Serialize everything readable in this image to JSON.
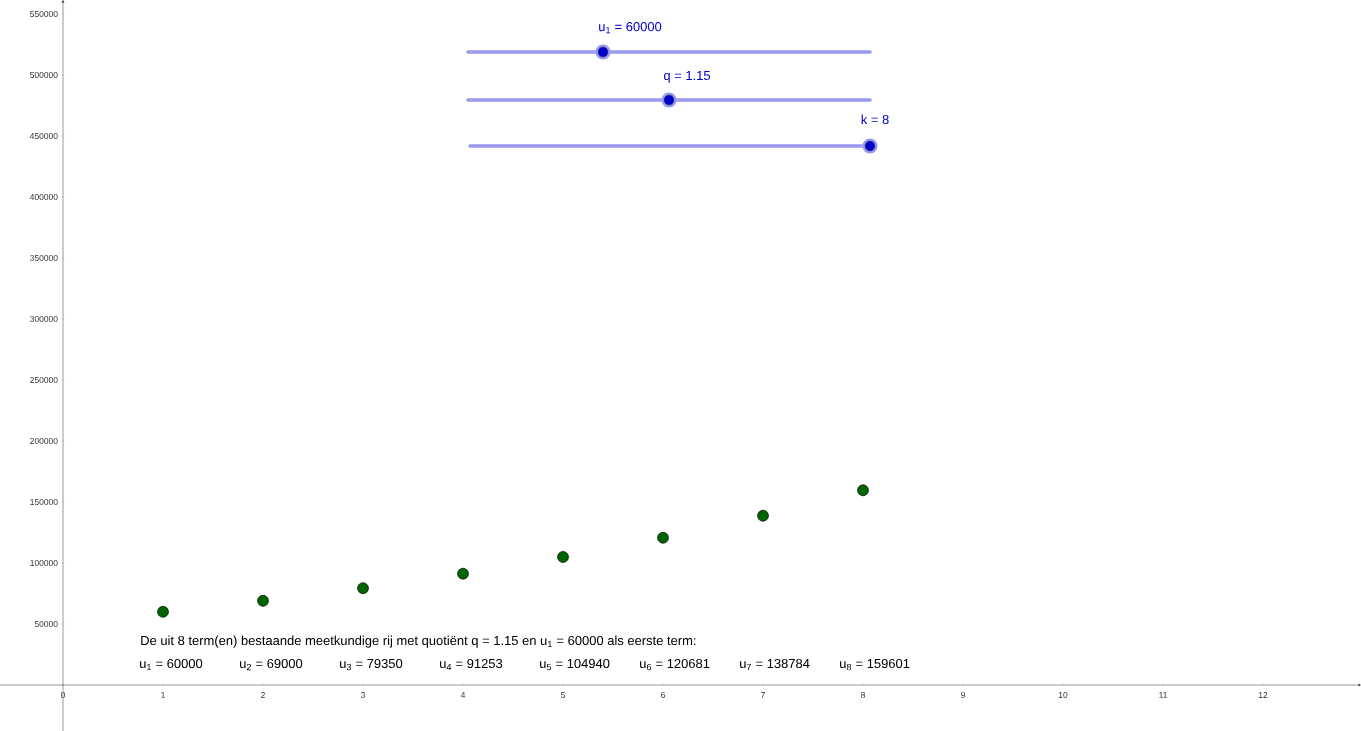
{
  "chart_data": {
    "type": "scatter",
    "x": [
      1,
      2,
      3,
      4,
      5,
      6,
      7,
      8
    ],
    "values": [
      60000,
      69000,
      79350,
      91253,
      104940,
      120681,
      138784,
      159601
    ],
    "color": "#006400",
    "marker": "circle",
    "xlim": [
      -0.63,
      12.98
    ],
    "ylim": [
      -37705,
      561475
    ],
    "xticks": [
      0,
      1,
      2,
      3,
      4,
      5,
      6,
      7,
      8,
      9,
      10,
      11,
      12
    ],
    "yticks": [
      50000,
      100000,
      150000,
      200000,
      250000,
      300000,
      350000,
      400000,
      450000,
      500000,
      550000
    ],
    "annotations": [
      "u$_{1}$ = 60000",
      "q = 1.15",
      "k = 8",
      "De uit 8 term(en) bestaande meetkundige rij met quotiënt q = 1.15 en u$_{1}$ = 60000 als eerste term:",
      "u$_{1}$ = 60000",
      "u$_{2}$ = 69000",
      "u$_{3}$ = 79350",
      "u$_{4}$ = 91253",
      "u$_{5}$ = 104940",
      "u$_{6}$ = 120681",
      "u$_{7}$ = 138784",
      "u$_{8}$ = 159601"
    ]
  }
}
